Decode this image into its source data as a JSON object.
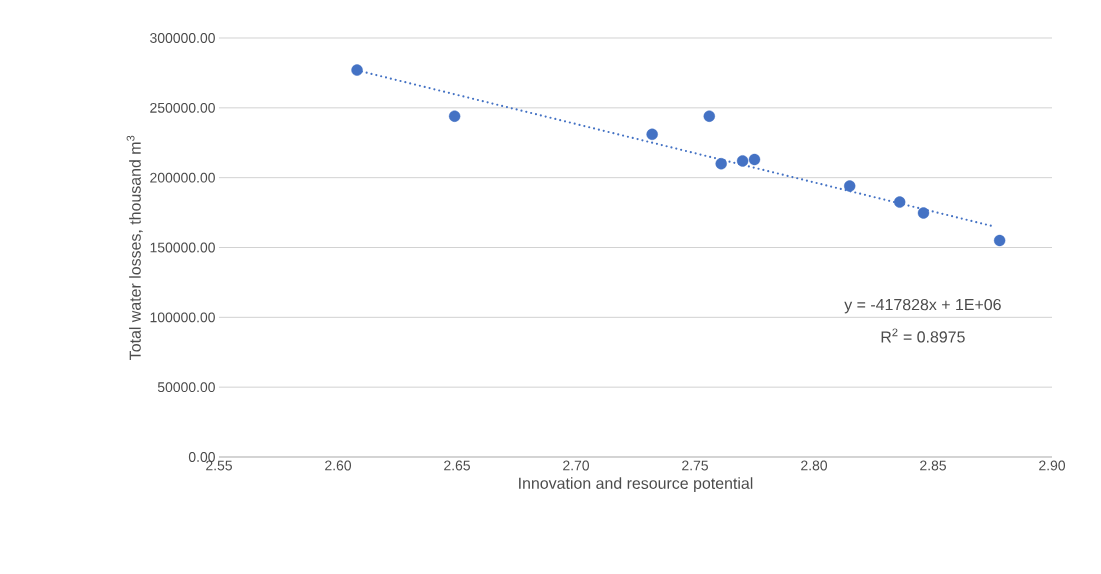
{
  "chart_data": {
    "type": "scatter",
    "xlabel": "Innovation and resource potential",
    "ylabel": "Total water losses, thousand m$^{3}$",
    "series": [
      {
        "color": "#4472c4",
        "marker": "circle",
        "x": [
          2.608,
          2.649,
          2.732,
          2.756,
          2.761,
          2.77,
          2.775,
          2.815,
          2.836,
          2.846,
          2.878
        ],
        "values": [
          277000,
          244000,
          231000,
          244000,
          210000,
          212000,
          213000,
          194000,
          182500,
          174700,
          155000
        ]
      },
      {
        "type": "line",
        "color": "#4472c4",
        "line_style": "dotted",
        "marker": "none",
        "x": [
          2.61,
          2.875
        ],
        "values": [
          276000,
          165300
        ]
      }
    ],
    "annotations": [
      "y = -417828x + 1E+06",
      "R$^{2}$ = 0.8975"
    ],
    "xlim": [
      2.55,
      2.9
    ],
    "ylim": [
      0,
      300000
    ],
    "xticks": [
      {
        "value": 2.55,
        "label": "2.55"
      },
      {
        "value": 2.6,
        "label": "2.60"
      },
      {
        "value": 2.65,
        "label": "2.65"
      },
      {
        "value": 2.7,
        "label": "2.70"
      },
      {
        "value": 2.75,
        "label": "2.75"
      },
      {
        "value": 2.8,
        "label": "2.80"
      },
      {
        "value": 2.85,
        "label": "2.85"
      },
      {
        "value": 2.9,
        "label": "2.90"
      }
    ],
    "yticks": [
      {
        "value": 0,
        "label": "0.00"
      },
      {
        "value": 50000,
        "label": "50000.00"
      },
      {
        "value": 100000,
        "label": "100000.00"
      },
      {
        "value": 150000,
        "label": "150000.00"
      },
      {
        "value": 200000,
        "label": "200000.00"
      },
      {
        "value": 250000,
        "label": "250000.00"
      },
      {
        "value": 300000,
        "label": "300000.00"
      }
    ],
    "grid": "y"
  }
}
